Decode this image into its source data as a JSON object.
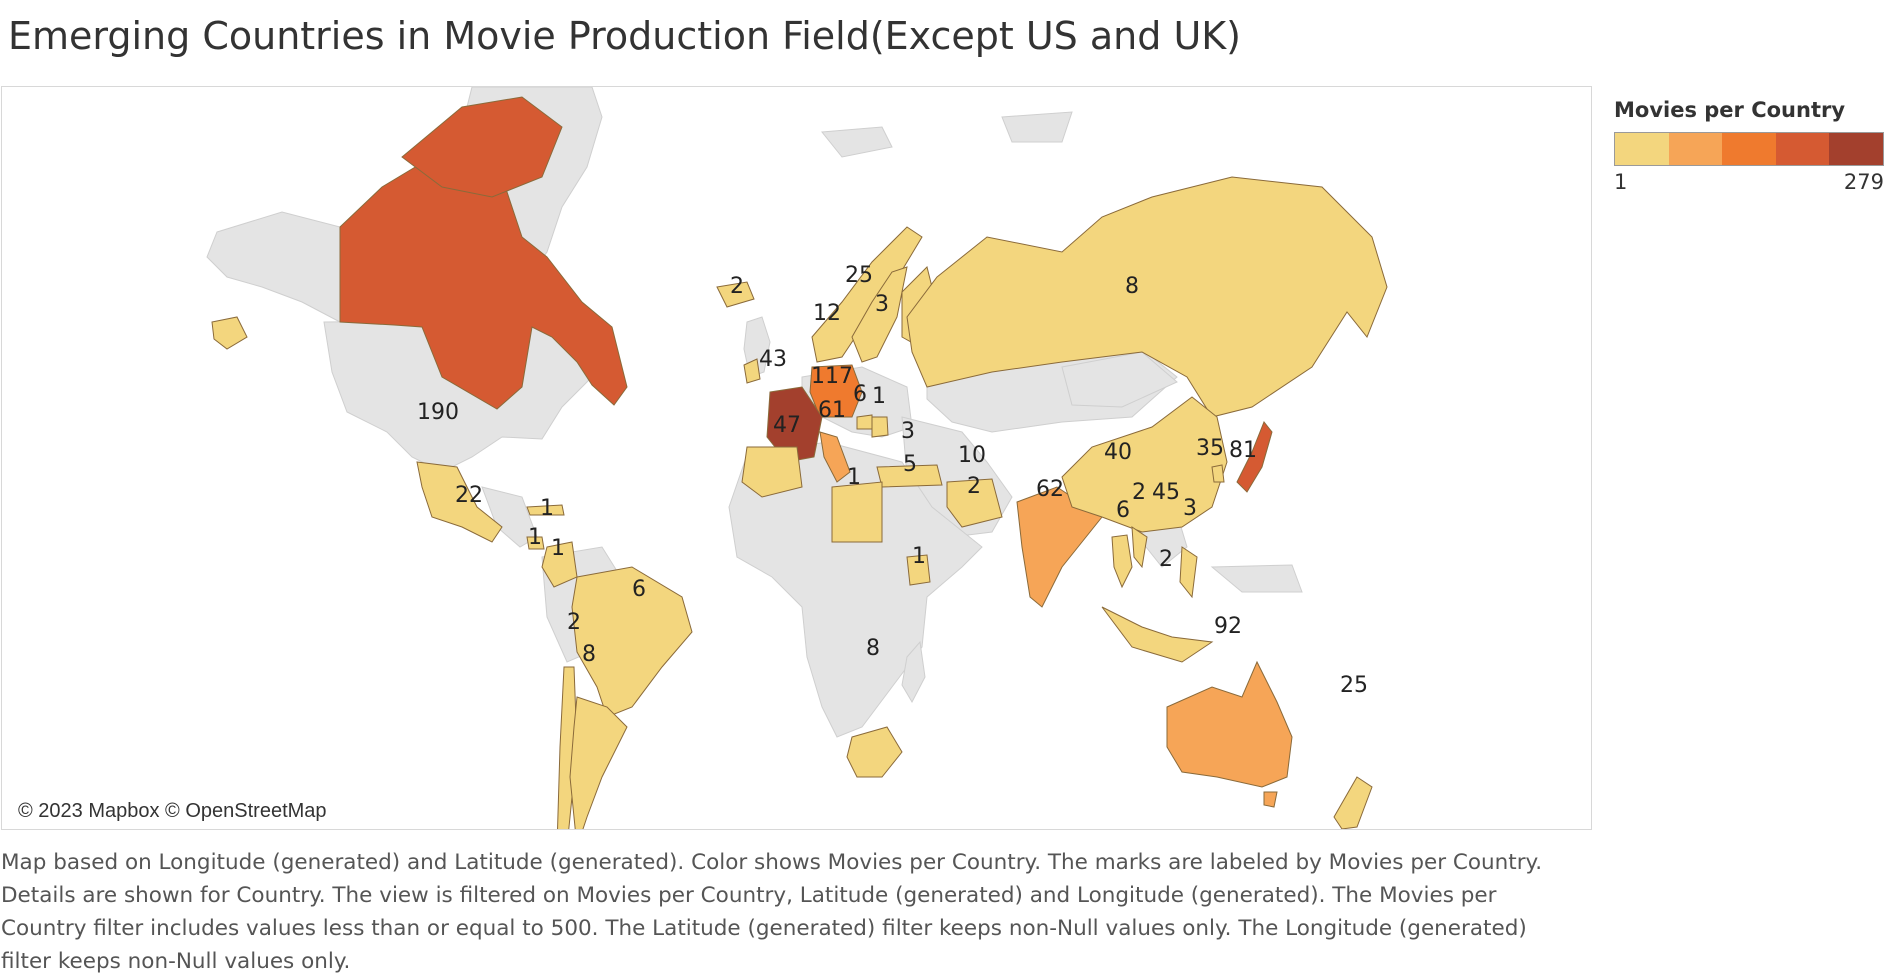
{
  "title": "Emerging Countries in Movie Production Field(Except US and UK)",
  "attribution": "© 2023 Mapbox © OpenStreetMap",
  "legend": {
    "title": "Movies per Country",
    "min_label": "1",
    "max_label": "279",
    "colors": [
      "#f3d67e",
      "#f6a557",
      "#ef7a2e",
      "#d55a32",
      "#a3402d"
    ]
  },
  "colors": {
    "land_gray": "#e4e4e4",
    "ocean": "#ffffff",
    "border": "#8a6a3a"
  },
  "caption": "Map based on Longitude (generated) and Latitude (generated).  Color shows Movies per Country.  The marks are labeled by Movies per Country.  Details are shown for Country. The view is filtered on Movies per Country, Latitude (generated) and Longitude (generated). The Movies per Country filter includes values less than or equal to 500. The Latitude (generated) filter keeps non-Null values only. The Longitude (generated) filter keeps non-Null values only.",
  "countries": [
    {
      "id": "canada",
      "value": "190"
    },
    {
      "id": "alaska",
      "value": ""
    },
    {
      "id": "greenland",
      "value": ""
    },
    {
      "id": "iceland",
      "value": "2"
    },
    {
      "id": "norway",
      "value": "12"
    },
    {
      "id": "sweden",
      "value": "25"
    },
    {
      "id": "finland",
      "value": "3"
    },
    {
      "id": "russia",
      "value": "8"
    },
    {
      "id": "ireland",
      "value": "4"
    },
    {
      "id": "uk-gap",
      "value": "3"
    },
    {
      "id": "germany",
      "value": "117"
    },
    {
      "id": "france",
      "value": "61"
    },
    {
      "id": "spain",
      "value": "47"
    },
    {
      "id": "hungary",
      "value": "6"
    },
    {
      "id": "romania",
      "value": "1"
    },
    {
      "id": "turkey",
      "value": "3"
    },
    {
      "id": "israel",
      "value": "5"
    },
    {
      "id": "libya",
      "value": "1"
    },
    {
      "id": "iran",
      "value": "10"
    },
    {
      "id": "uae",
      "value": "2"
    },
    {
      "id": "india",
      "value": "62"
    },
    {
      "id": "china",
      "value": "40"
    },
    {
      "id": "south-korea",
      "value": "35"
    },
    {
      "id": "japan",
      "value": "81"
    },
    {
      "id": "thailand",
      "value": "6"
    },
    {
      "id": "vietnam",
      "value": "2"
    },
    {
      "id": "hong-kong",
      "value": "45"
    },
    {
      "id": "philippines",
      "value": "3"
    },
    {
      "id": "indonesia",
      "value": "2"
    },
    {
      "id": "australia",
      "value": "92"
    },
    {
      "id": "new-zealand",
      "value": "25"
    },
    {
      "id": "mexico",
      "value": "22"
    },
    {
      "id": "cuba",
      "value": "1"
    },
    {
      "id": "panama",
      "value": "1"
    },
    {
      "id": "colombia",
      "value": "1"
    },
    {
      "id": "brazil",
      "value": "6"
    },
    {
      "id": "chile",
      "value": "2"
    },
    {
      "id": "argentina",
      "value": "8"
    },
    {
      "id": "kenya",
      "value": "1"
    },
    {
      "id": "south-africa",
      "value": "8"
    }
  ]
}
